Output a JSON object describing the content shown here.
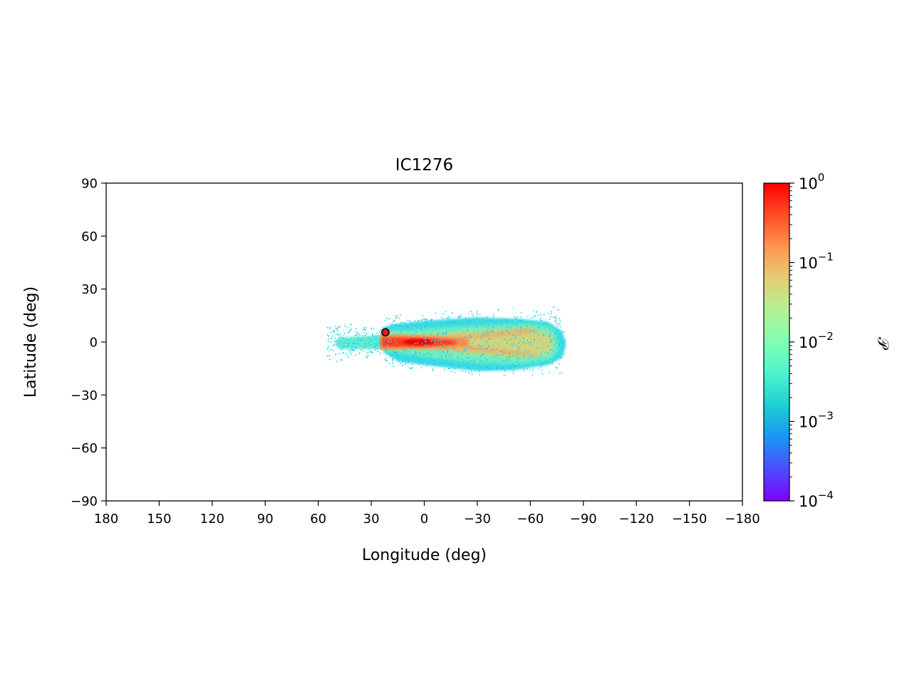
{
  "chart_data": {
    "type": "heatmap",
    "title": "IC1276",
    "xlabel": "Longitude (deg)",
    "ylabel": "Latitude (deg)",
    "xlim": [
      180,
      -180
    ],
    "ylim": [
      -90,
      90
    ],
    "x_ticks": [
      180,
      150,
      120,
      90,
      60,
      30,
      0,
      -30,
      -60,
      -90,
      -120,
      -150,
      -180
    ],
    "x_tick_labels": [
      "180",
      "150",
      "120",
      "90",
      "60",
      "30",
      "0",
      "−30",
      "−60",
      "−90",
      "−120",
      "−150",
      "−180"
    ],
    "y_ticks": [
      90,
      60,
      30,
      0,
      -30,
      -60,
      -90
    ],
    "y_tick_labels": [
      "90",
      "60",
      "30",
      "0",
      "−30",
      "−60",
      "−90"
    ],
    "grid": false,
    "colorbar": {
      "label": "𝒫",
      "scale": "log",
      "range": [
        0.0001,
        1
      ],
      "ticks": [
        1,
        0.1,
        0.01,
        0.001,
        0.0001
      ],
      "tick_base": "10",
      "tick_exponents": [
        "0",
        "−1",
        "−2",
        "−3",
        "−4"
      ],
      "colormap": "rainbow",
      "colors": [
        "#7f00ff",
        "#4b4efc",
        "#1996f3",
        "#1bcfd4",
        "#4df3ce",
        "#81feb3",
        "#b3f294",
        "#e6cd73",
        "#ff964f",
        "#ff4d27",
        "#ff0000"
      ]
    },
    "stream": {
      "leading_tail": {
        "lon_start": 23,
        "lon_end": 48,
        "lat_half_width_start": 4,
        "lat_half_width_end": 2.5
      },
      "trailing_arm": {
        "lon_start": 20,
        "lon_end": -78,
        "lat_half_width_start": 6,
        "lat_half_width_end": 10
      },
      "peak_density": 1.0
    },
    "progenitor": {
      "lon": 22,
      "lat": 5.5,
      "color": "#e41a1c"
    }
  }
}
